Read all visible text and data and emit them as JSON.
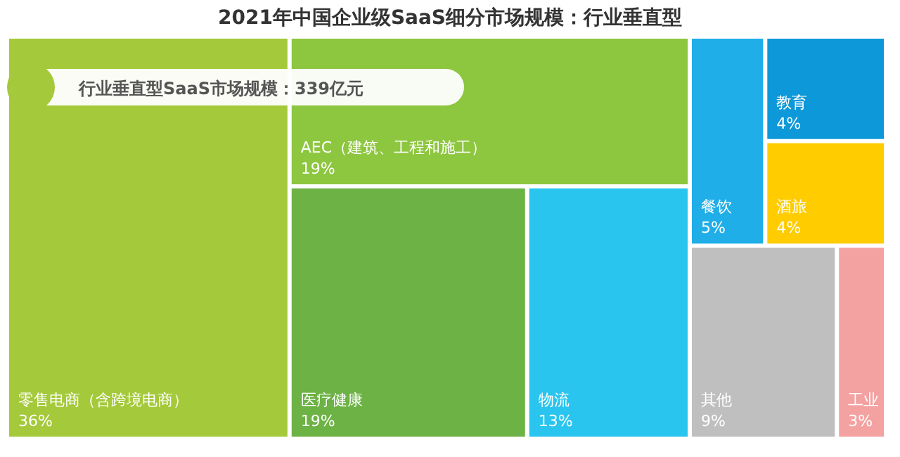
{
  "chart_data": {
    "type": "other",
    "title": "2021年中国企业级SaaS细分市场规模：行业垂直型",
    "annotations": [
      "行业垂直型SaaS市场规模：339亿元"
    ],
    "categories": [
      "零售电商（含跨境电商）",
      "AEC（建筑、工程和施工）",
      "医疗健康",
      "物流",
      "餐饮",
      "教育",
      "酒旅",
      "其他",
      "工业"
    ],
    "values": [
      36,
      19,
      19,
      13,
      5,
      4,
      4,
      9,
      3
    ],
    "value_labels": [
      "36%",
      "19%",
      "19%",
      "13%",
      "5%",
      "4%",
      "4%",
      "9%",
      "3%"
    ],
    "colors": [
      "#a4c93a",
      "#8dc63f",
      "#6cb244",
      "#2ac5ef",
      "#1faee8",
      "#0c98d9",
      "#ffcc00",
      "#bfbfbf",
      "#f4a1a1"
    ]
  }
}
